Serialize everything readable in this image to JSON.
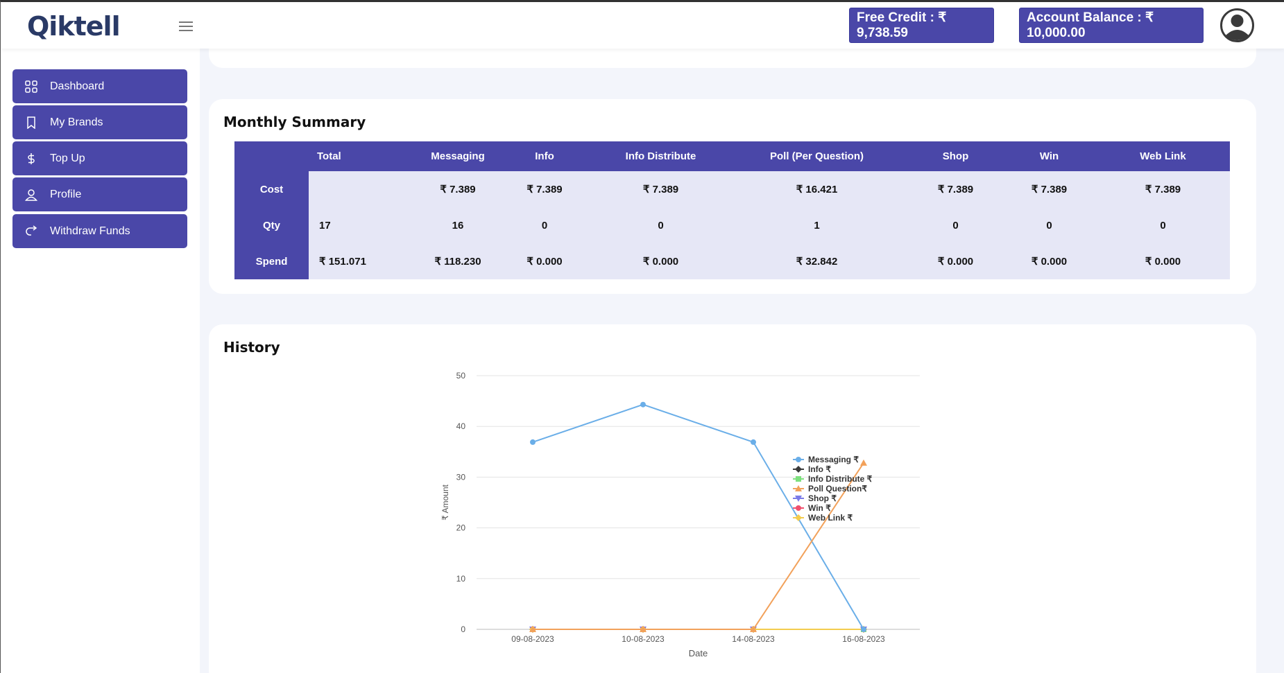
{
  "brand": {
    "logo_text": "Qiktell"
  },
  "header": {
    "free_credit": "Free Credit : ₹ 9,738.59",
    "account_balance": "Account Balance : ₹ 10,000.00"
  },
  "sidebar": {
    "items": [
      {
        "label": "Dashboard",
        "icon": "grid-icon"
      },
      {
        "label": "My Brands",
        "icon": "bookmark-icon"
      },
      {
        "label": "Top Up",
        "icon": "dollar-icon"
      },
      {
        "label": "Profile",
        "icon": "user-icon"
      },
      {
        "label": "Withdraw Funds",
        "icon": "redo-icon"
      }
    ]
  },
  "summary": {
    "title": "Monthly Summary",
    "columns": [
      "",
      "Total",
      "Messaging",
      "Info",
      "Info Distribute",
      "Poll (Per Question)",
      "Shop",
      "Win",
      "Web Link"
    ],
    "rows": [
      {
        "label": "Cost",
        "cells": [
          "",
          "₹ 7.389",
          "₹ 7.389",
          "₹ 7.389",
          "₹ 16.421",
          "₹ 7.389",
          "₹ 7.389",
          "₹ 7.389"
        ]
      },
      {
        "label": "Qty",
        "cells": [
          "17",
          "16",
          "0",
          "0",
          "1",
          "0",
          "0",
          "0"
        ]
      },
      {
        "label": "Spend",
        "cells": [
          "₹ 151.071",
          "₹ 118.230",
          "₹ 0.000",
          "₹ 0.000",
          "₹ 32.842",
          "₹ 0.000",
          "₹ 0.000",
          "₹ 0.000"
        ]
      }
    ]
  },
  "history": {
    "title": "History"
  },
  "chart_data": {
    "type": "line",
    "xlabel": "Date",
    "ylabel": "₹ Amount",
    "ylim": [
      0,
      50
    ],
    "yticks": [
      0,
      10,
      20,
      30,
      40,
      50
    ],
    "categories": [
      "09-08-2023",
      "10-08-2023",
      "14-08-2023",
      "16-08-2023"
    ],
    "legend_position": "right",
    "grid": true,
    "series": [
      {
        "name": "Messaging ₹",
        "color": "#6aaee8",
        "marker": "circle",
        "values": [
          36.9,
          44.3,
          36.9,
          0
        ]
      },
      {
        "name": "Info ₹",
        "color": "#3a3a3a",
        "marker": "diamond",
        "values": [
          0,
          0,
          0,
          0
        ]
      },
      {
        "name": "Info Distribute ₹",
        "color": "#7ee07e",
        "marker": "square",
        "values": [
          0,
          0,
          0,
          0
        ]
      },
      {
        "name": "Poll Question₹",
        "color": "#f2a15a",
        "marker": "triangle",
        "values": [
          0,
          0,
          0,
          32.8
        ]
      },
      {
        "name": "Shop ₹",
        "color": "#7b7be8",
        "marker": "triangle-down",
        "values": [
          0,
          0,
          0,
          0
        ]
      },
      {
        "name": "Win ₹",
        "color": "#f0506e",
        "marker": "circle",
        "values": [
          0,
          0,
          0,
          0
        ]
      },
      {
        "name": "Web Link ₹",
        "color": "#f3cc4e",
        "marker": "diamond",
        "values": [
          0,
          0,
          0,
          0
        ]
      }
    ]
  }
}
